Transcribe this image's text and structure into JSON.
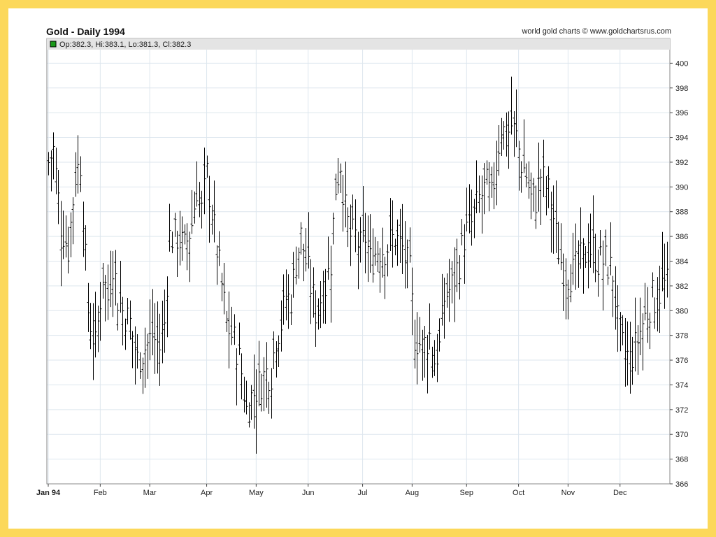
{
  "chart_data": {
    "type": "ohlc",
    "title": "Gold - Daily 1994",
    "credit": "world gold charts © www.goldchartsrus.com",
    "legend": {
      "label": "Op:382.3, Hi:383.1, Lo:381.3, Cl:382.3",
      "color": "#1a9a1a"
    },
    "ylim": [
      366,
      402
    ],
    "yticks": [
      366,
      368,
      370,
      372,
      374,
      376,
      378,
      380,
      382,
      384,
      386,
      388,
      390,
      392,
      394,
      396,
      398,
      400
    ],
    "y_axis_side": "right",
    "xlim": [
      0,
      250
    ],
    "xticks": [
      {
        "label": "Jan 94",
        "bold": true,
        "x": 0
      },
      {
        "label": "Feb",
        "x": 21
      },
      {
        "label": "Mar",
        "x": 41
      },
      {
        "label": "Apr",
        "x": 64
      },
      {
        "label": "May",
        "x": 84
      },
      {
        "label": "Jun",
        "x": 105
      },
      {
        "label": "Jul",
        "x": 127
      },
      {
        "label": "Aug",
        "x": 147
      },
      {
        "label": "Sep",
        "x": 169
      },
      {
        "label": "Oct",
        "x": 190
      },
      {
        "label": "Nov",
        "x": 210
      },
      {
        "label": "Dec",
        "x": 231
      }
    ],
    "grid": true,
    "series_color": "#000000",
    "trend_points": [
      [
        0,
        392
      ],
      [
        2,
        393
      ],
      [
        5,
        387
      ],
      [
        8,
        385
      ],
      [
        11,
        391
      ],
      [
        13,
        392
      ],
      [
        16,
        380
      ],
      [
        19,
        377
      ],
      [
        22,
        383
      ],
      [
        24,
        381
      ],
      [
        26,
        384
      ],
      [
        28,
        381
      ],
      [
        30,
        380
      ],
      [
        33,
        379
      ],
      [
        36,
        376
      ],
      [
        39,
        377
      ],
      [
        42,
        378
      ],
      [
        45,
        377
      ],
      [
        47,
        379
      ],
      [
        49,
        386
      ],
      [
        52,
        386
      ],
      [
        55,
        385
      ],
      [
        58,
        387
      ],
      [
        60,
        390
      ],
      [
        62,
        388
      ],
      [
        64,
        391
      ],
      [
        66,
        388
      ],
      [
        68,
        385
      ],
      [
        70,
        382
      ],
      [
        72,
        379
      ],
      [
        74,
        378
      ],
      [
        76,
        377
      ],
      [
        78,
        375
      ],
      [
        80,
        372
      ],
      [
        82,
        373
      ],
      [
        85,
        374
      ],
      [
        88,
        375
      ],
      [
        90,
        375
      ],
      [
        92,
        378
      ],
      [
        94,
        379
      ],
      [
        96,
        381
      ],
      [
        98,
        381
      ],
      [
        100,
        384
      ],
      [
        102,
        386
      ],
      [
        104,
        384
      ],
      [
        106,
        382
      ],
      [
        108,
        380
      ],
      [
        110,
        381
      ],
      [
        112,
        382
      ],
      [
        114,
        384
      ],
      [
        116,
        390
      ],
      [
        118,
        392
      ],
      [
        120,
        388
      ],
      [
        122,
        386
      ],
      [
        124,
        386
      ],
      [
        126,
        385
      ],
      [
        128,
        386
      ],
      [
        130,
        384
      ],
      [
        133,
        385
      ],
      [
        136,
        385
      ],
      [
        140,
        386
      ],
      [
        143,
        385
      ],
      [
        146,
        383
      ],
      [
        148,
        378
      ],
      [
        151,
        377
      ],
      [
        154,
        378
      ],
      [
        156,
        376
      ],
      [
        158,
        377
      ],
      [
        160,
        381
      ],
      [
        163,
        382
      ],
      [
        166,
        384
      ],
      [
        168,
        386
      ],
      [
        171,
        387
      ],
      [
        174,
        389
      ],
      [
        177,
        390
      ],
      [
        179,
        389
      ],
      [
        181,
        392
      ],
      [
        183,
        395
      ],
      [
        185,
        394
      ],
      [
        187,
        395
      ],
      [
        189,
        394
      ],
      [
        191,
        392
      ],
      [
        193,
        391
      ],
      [
        195,
        389
      ],
      [
        197,
        389
      ],
      [
        199,
        391
      ],
      [
        201,
        390
      ],
      [
        203,
        389
      ],
      [
        205,
        386
      ],
      [
        207,
        384
      ],
      [
        209,
        383
      ],
      [
        212,
        383
      ],
      [
        215,
        384
      ],
      [
        218,
        385
      ],
      [
        220,
        385
      ],
      [
        222,
        384
      ],
      [
        225,
        384
      ],
      [
        228,
        383
      ],
      [
        230,
        379
      ],
      [
        232,
        377
      ],
      [
        235,
        376
      ],
      [
        237,
        377
      ],
      [
        240,
        379
      ],
      [
        242,
        380
      ],
      [
        244,
        381
      ],
      [
        246,
        381
      ],
      [
        248,
        382
      ],
      [
        250,
        382
      ]
    ]
  }
}
